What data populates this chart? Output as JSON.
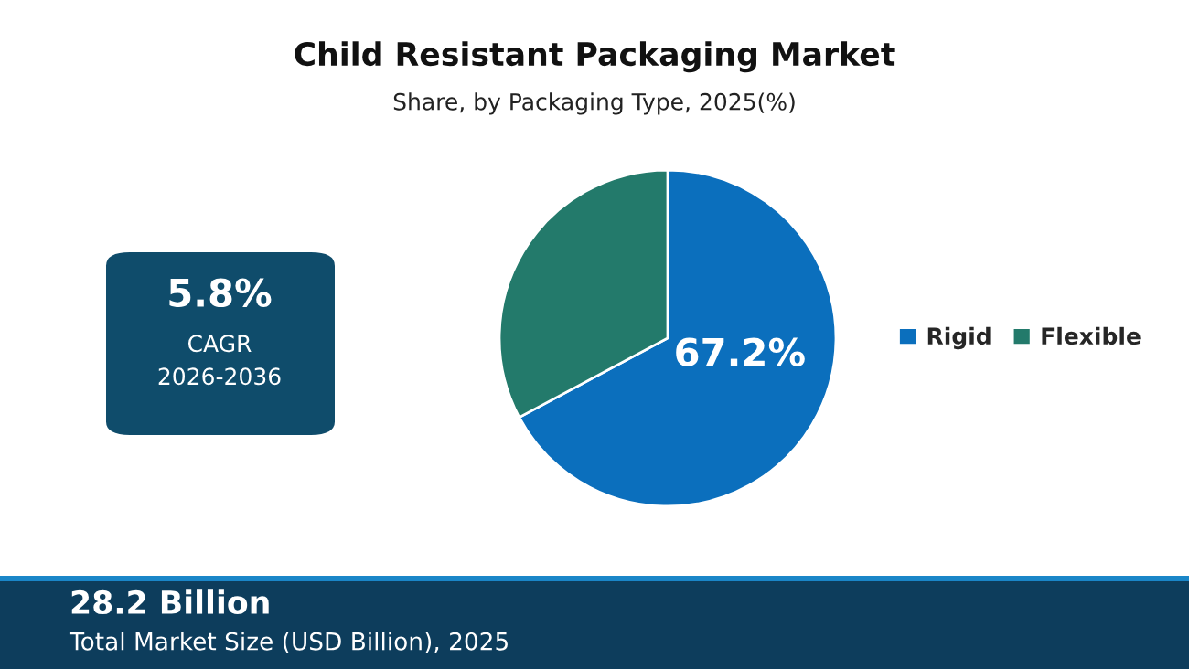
{
  "chart_data": {
    "type": "pie",
    "title": "Child Resistant Packaging Market",
    "subtitle": "Share, by Packaging Type, 2025(%)",
    "categories": [
      "Rigid",
      "Flexible"
    ],
    "values": [
      67.2,
      32.8
    ],
    "colors": [
      "#0b6fbd",
      "#237a6b"
    ],
    "value_labels": [
      "67.2%",
      null
    ],
    "legend": "right",
    "annotations": [
      "5.8%",
      "CAGR",
      "2026-2036",
      "28.2 Billion",
      "Total Market Size (USD Billion), 2025"
    ]
  }
}
